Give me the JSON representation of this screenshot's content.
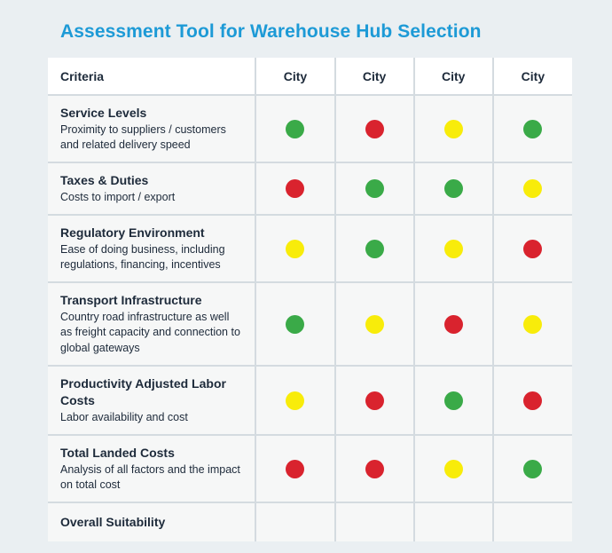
{
  "title": "Assessment Tool for Warehouse Hub Selection",
  "header": {
    "criteria": "Criteria",
    "cities": [
      "City",
      "City",
      "City",
      "City"
    ]
  },
  "colors": {
    "green": "#3aaa48",
    "red": "#d9232e",
    "yellow": "#f8ec0a"
  },
  "rows": [
    {
      "title": "Service Levels",
      "description": "Proximity to suppliers / customers and related delivery speed",
      "ratings": [
        "green",
        "red",
        "yellow",
        "green"
      ]
    },
    {
      "title": "Taxes & Duties",
      "description": "Costs to import / export",
      "ratings": [
        "red",
        "green",
        "green",
        "yellow"
      ]
    },
    {
      "title": "Regulatory Environment",
      "description": "Ease of doing business, including regulations, financing, incentives",
      "ratings": [
        "yellow",
        "green",
        "yellow",
        "red"
      ]
    },
    {
      "title": "Transport Infrastructure",
      "description": "Country road infrastructure as well as freight capacity and connection to global gateways",
      "ratings": [
        "green",
        "yellow",
        "red",
        "yellow"
      ]
    },
    {
      "title": "Productivity Adjusted Labor Costs",
      "description": "Labor availability and cost",
      "ratings": [
        "yellow",
        "red",
        "green",
        "red"
      ]
    },
    {
      "title": "Total Landed Costs",
      "description": "Analysis of all factors and the impact on total cost",
      "ratings": [
        "red",
        "red",
        "yellow",
        "green"
      ]
    },
    {
      "title": "Overall Suitability",
      "description": "",
      "ratings": [
        "",
        "",
        "",
        ""
      ]
    }
  ]
}
